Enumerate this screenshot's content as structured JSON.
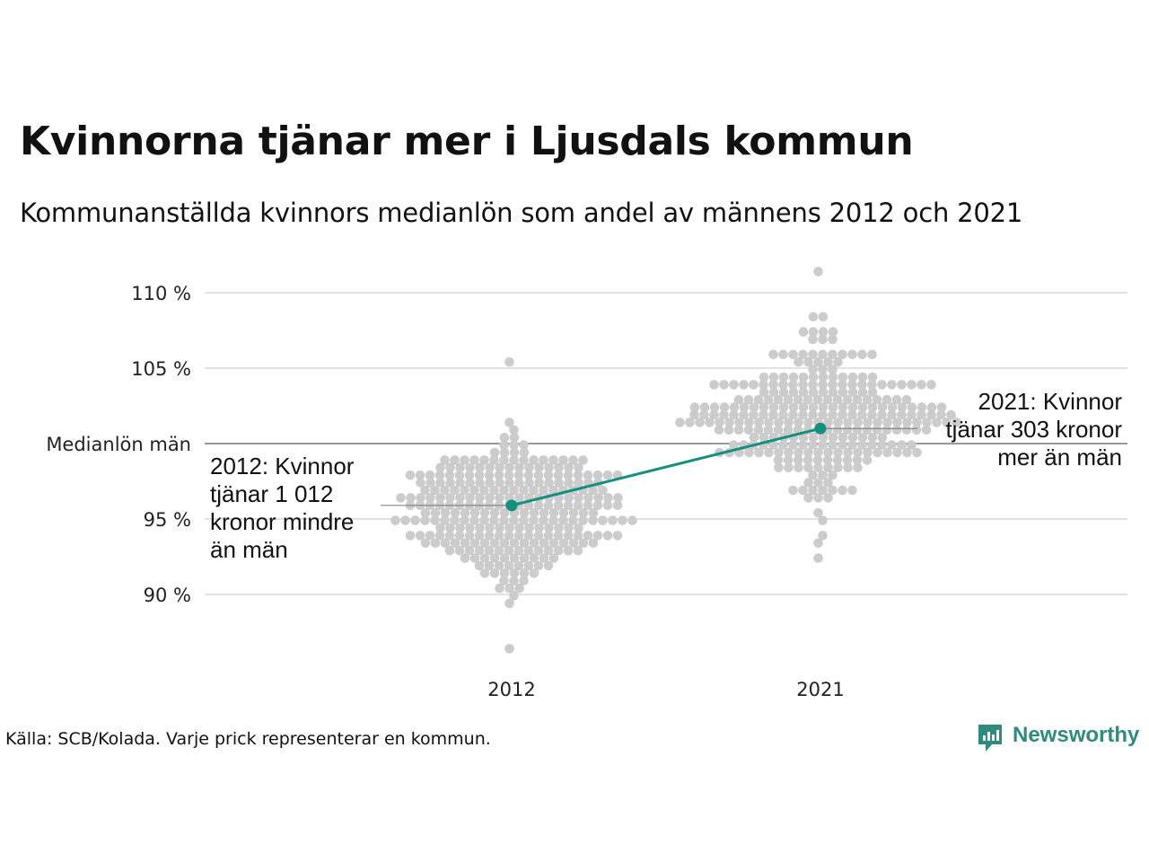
{
  "title": "Kvinnorna tjänar mer i Ljusdals kommun",
  "subtitle": "Kommunanställda kvinnors medianlön som andel av männens 2012 och 2021",
  "source": "Källa: SCB/Kolada. Varje prick representerar en kommun.",
  "logo": {
    "text": "Newsworthy",
    "icon": "newsworthy-logo-icon",
    "color": "#2e8b7e"
  },
  "chart_data": {
    "type": "scatter",
    "categories": [
      "2012",
      "2021"
    ],
    "yticks": [
      {
        "value": 90,
        "label": "90 %"
      },
      {
        "value": 95,
        "label": "95 %"
      },
      {
        "value": 105,
        "label": "105 %"
      },
      {
        "value": 110,
        "label": "110 %"
      }
    ],
    "ylim": [
      86,
      112
    ],
    "grid": true,
    "reference_line": {
      "value": 100,
      "label": "Medianlön män"
    },
    "highlight": {
      "color": "#15907f",
      "values": [
        95.9,
        101.0
      ]
    },
    "dot_color": "#cccccc",
    "distributions": [
      {
        "category": "2012",
        "median": 95.5,
        "spread": 2.4,
        "count": 290,
        "min": 86.5,
        "max": 105.2
      },
      {
        "category": "2021",
        "median": 101.8,
        "spread": 2.4,
        "count": 290,
        "min": 92.5,
        "max": 111.2
      }
    ],
    "annotations": [
      {
        "category": "2012",
        "lines": [
          "2012: Kvinnor",
          "tjänar 1 012",
          "kronor mindre",
          "än män"
        ]
      },
      {
        "category": "2021",
        "lines": [
          "2021: Kvinnor",
          "tjänar 303 kronor",
          "mer än män"
        ]
      }
    ]
  }
}
